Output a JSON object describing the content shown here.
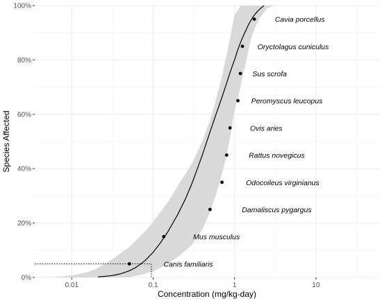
{
  "chart_data": {
    "type": "scatter",
    "xlabel": "Concentration (mg/kg-day)",
    "ylabel": "Species Affected",
    "x_scale": "log10",
    "xlim": [
      0.0035,
      60
    ],
    "ylim": [
      0,
      1
    ],
    "x_ticks": [
      0.01,
      0.1,
      1,
      10
    ],
    "x_tick_labels": [
      "0.01",
      "0.1",
      "1",
      "10"
    ],
    "y_ticks": [
      0,
      0.2,
      0.4,
      0.6,
      0.8,
      1.0
    ],
    "y_tick_labels": [
      "0%",
      "20%",
      "40%",
      "60%",
      "80%",
      "100%"
    ],
    "grid": true,
    "points": [
      {
        "name": "Canis familiaris",
        "x": 0.051,
        "y": 0.05
      },
      {
        "name": "Mus musculus",
        "x": 0.135,
        "y": 0.15
      },
      {
        "name": "Damaliscus pygargus",
        "x": 0.5,
        "y": 0.25
      },
      {
        "name": "Odocoileus virginianus",
        "x": 0.7,
        "y": 0.35
      },
      {
        "name": "Rattus novegicus",
        "x": 0.8,
        "y": 0.45
      },
      {
        "name": "Ovis aries",
        "x": 0.88,
        "y": 0.55
      },
      {
        "name": "Peromyscus leucopus",
        "x": 1.1,
        "y": 0.65
      },
      {
        "name": "Sus scrofa",
        "x": 1.18,
        "y": 0.75
      },
      {
        "name": "Oryctolagus cuniculus",
        "x": 1.25,
        "y": 0.85
      },
      {
        "name": "Cavia porcellus",
        "x": 1.75,
        "y": 0.95
      }
    ],
    "labels": [
      {
        "text": "Canis familiaris",
        "x": 0.27,
        "y": 0.05
      },
      {
        "text": "Mus musculus",
        "x": 0.6,
        "y": 0.15
      },
      {
        "text": "Damaliscus pygargus",
        "x": 3.3,
        "y": 0.25
      },
      {
        "text": "Odocoileus virginianus",
        "x": 3.9,
        "y": 0.35
      },
      {
        "text": "Rattus novegicus",
        "x": 3.3,
        "y": 0.45
      },
      {
        "text": "Ovis aries",
        "x": 2.45,
        "y": 0.55
      },
      {
        "text": "Peromyscus leucopus",
        "x": 4.4,
        "y": 0.65
      },
      {
        "text": "Sus scrofa",
        "x": 2.7,
        "y": 0.75
      },
      {
        "text": "Oryctolagus cuniculus",
        "x": 5.25,
        "y": 0.85
      },
      {
        "text": "Cavia porcellus",
        "x": 6.35,
        "y": 0.95
      }
    ],
    "fit_curve": {
      "x": [
        0.021,
        0.025,
        0.03,
        0.035,
        0.04,
        0.05,
        0.06,
        0.07,
        0.08,
        0.1,
        0.12,
        0.15,
        0.2,
        0.25,
        0.3,
        0.4,
        0.5,
        0.6,
        0.7,
        0.8,
        0.9,
        1.0,
        1.1,
        1.2,
        1.3,
        1.5,
        1.7,
        1.9,
        2.1,
        2.3
      ],
      "y": [
        0.002,
        0.0035,
        0.0062,
        0.0096,
        0.0136,
        0.0235,
        0.0352,
        0.049,
        0.0627,
        0.0927,
        0.1232,
        0.1658,
        0.231,
        0.2898,
        0.3459,
        0.4485,
        0.5356,
        0.6051,
        0.6623,
        0.7151,
        0.7622,
        0.8004,
        0.8384,
        0.8684,
        0.8926,
        0.9326,
        0.9602,
        0.9778,
        0.9902,
        0.9998
      ]
    },
    "confidence_band": {
      "x_upper": [
        0.0042,
        0.006,
        0.008,
        0.01,
        0.015,
        0.02,
        0.03,
        0.05,
        0.08,
        0.1,
        0.15,
        0.2,
        0.3,
        0.4,
        0.5,
        0.6,
        0.7,
        0.8,
        0.9,
        1.0,
        1.2
      ],
      "y_upper": [
        0.0,
        0.0015,
        0.004,
        0.0075,
        0.018,
        0.032,
        0.063,
        0.11,
        0.17,
        0.205,
        0.275,
        0.335,
        0.42,
        0.5,
        0.578,
        0.66,
        0.74,
        0.82,
        0.895,
        0.965,
        1.0
      ],
      "x_lower": [
        3.1,
        2.5,
        2.0,
        1.8,
        1.6,
        1.4,
        1.3,
        1.2,
        1.1,
        1.0,
        0.9,
        0.8,
        0.7,
        0.6,
        0.5,
        0.4,
        0.3,
        0.22,
        0.15,
        0.1,
        0.075,
        0.05
      ],
      "y_lower": [
        1.0,
        0.99,
        0.95,
        0.92,
        0.88,
        0.8,
        0.76,
        0.71,
        0.66,
        0.615,
        0.53,
        0.45,
        0.38,
        0.31,
        0.24,
        0.175,
        0.12,
        0.085,
        0.048,
        0.022,
        0.012,
        0.0
      ]
    },
    "reference_line": {
      "x": 0.095,
      "y": 0.05
    }
  }
}
